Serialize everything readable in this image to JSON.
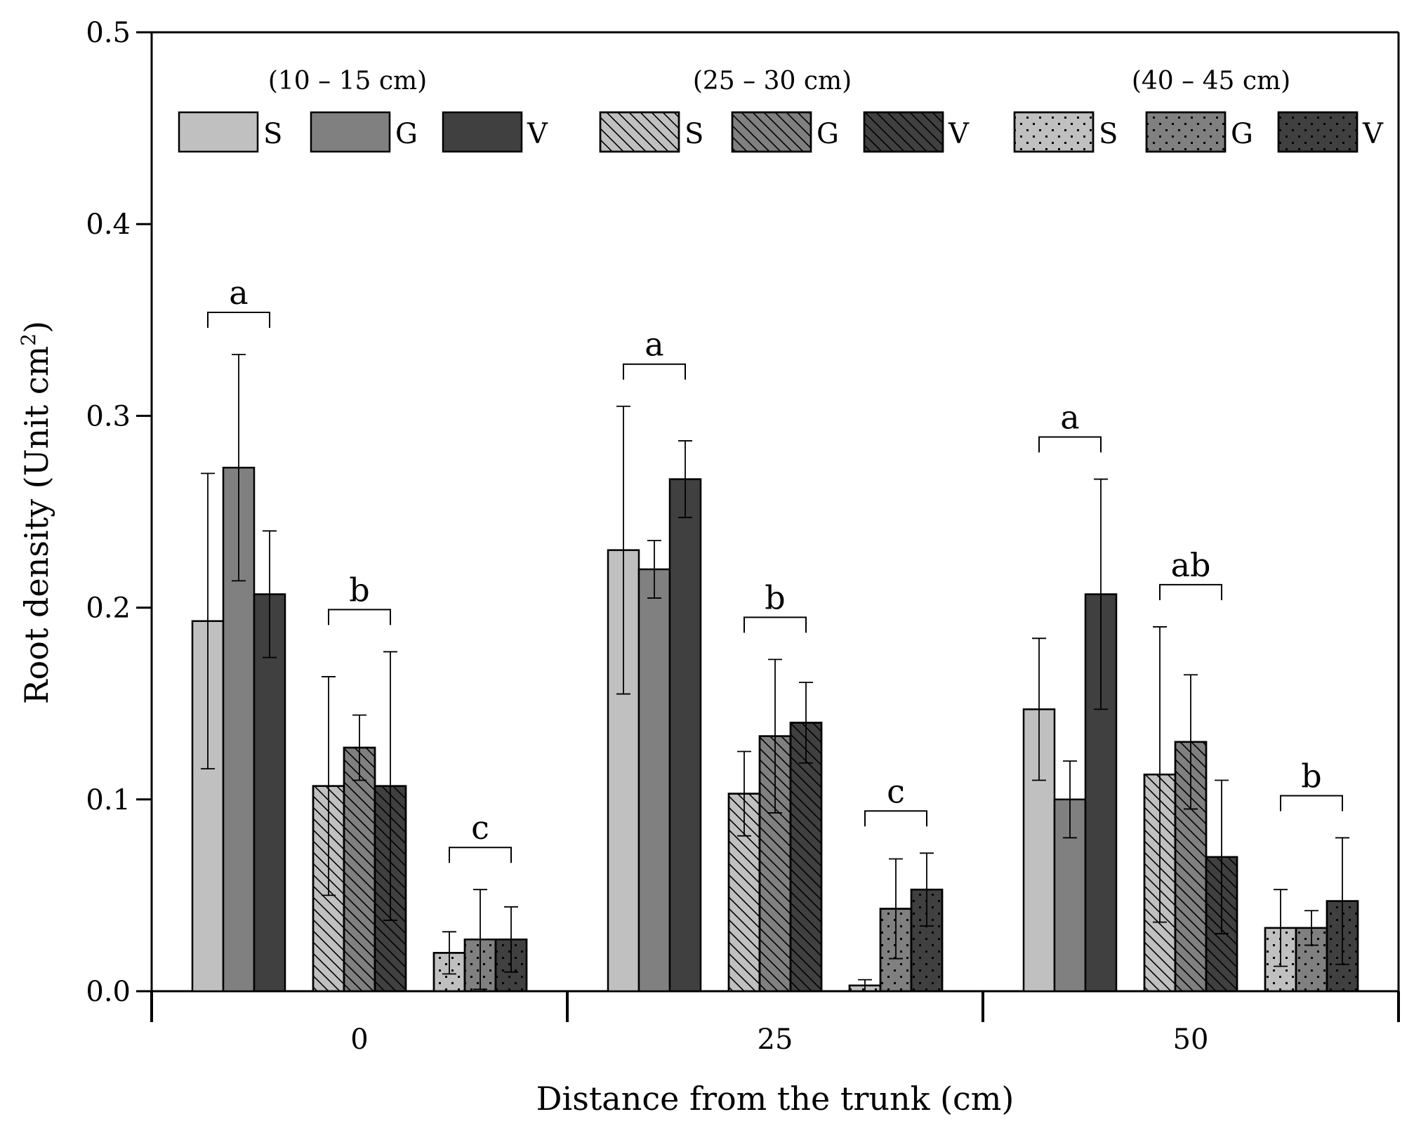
{
  "chart_data": {
    "type": "bar",
    "title": "",
    "xlabel": "Distance from the trunk (cm)",
    "ylabel": "Root density (Unit cm",
    "ylabel_sup": "2",
    "ylabel_close": ")",
    "ylim": [
      0,
      0.5
    ],
    "yticks": [
      {
        "value": 0.0,
        "label": "0.0"
      },
      {
        "value": 0.1,
        "label": "0.1"
      },
      {
        "value": 0.2,
        "label": "0.2"
      },
      {
        "value": 0.3,
        "label": "0.3"
      },
      {
        "value": 0.4,
        "label": "0.4"
      },
      {
        "value": 0.5,
        "label": "0.5"
      }
    ],
    "categories": [
      "0",
      "25",
      "50"
    ],
    "depth_groups": [
      {
        "label": "(10 – 15 cm)",
        "pattern": "solid"
      },
      {
        "label": "(25 – 30 cm)",
        "pattern": "hatch"
      },
      {
        "label": "(40 – 45 cm)",
        "pattern": "dots"
      }
    ],
    "series_names": [
      "S",
      "G",
      "V"
    ],
    "series_colors": [
      "#c0c0c0",
      "#808080",
      "#404040"
    ],
    "values": [
      [
        {
          "means": [
            0.193,
            0.273,
            0.207
          ],
          "errors": [
            0.077,
            0.059,
            0.033
          ],
          "letter": "a"
        },
        {
          "means": [
            0.107,
            0.127,
            0.107
          ],
          "errors": [
            0.057,
            0.017,
            0.07
          ],
          "letter": "b"
        },
        {
          "means": [
            0.02,
            0.027,
            0.027
          ],
          "errors": [
            0.011,
            0.026,
            0.017
          ],
          "letter": "c"
        }
      ],
      [
        {
          "means": [
            0.23,
            0.22,
            0.267
          ],
          "errors": [
            0.075,
            0.015,
            0.02
          ],
          "letter": "a"
        },
        {
          "means": [
            0.103,
            0.133,
            0.14
          ],
          "errors": [
            0.022,
            0.04,
            0.021
          ],
          "letter": "b"
        },
        {
          "means": [
            0.003,
            0.043,
            0.053
          ],
          "errors": [
            0.003,
            0.026,
            0.019
          ],
          "letter": "c"
        }
      ],
      [
        {
          "means": [
            0.147,
            0.1,
            0.207
          ],
          "errors": [
            0.037,
            0.02,
            0.06
          ],
          "letter": "a"
        },
        {
          "means": [
            0.113,
            0.13,
            0.07
          ],
          "errors": [
            0.077,
            0.035,
            0.04
          ],
          "letter": "ab"
        },
        {
          "means": [
            0.033,
            0.033,
            0.047
          ],
          "errors": [
            0.02,
            0.009,
            0.033
          ],
          "letter": "b"
        }
      ]
    ],
    "legend_position": "top"
  }
}
